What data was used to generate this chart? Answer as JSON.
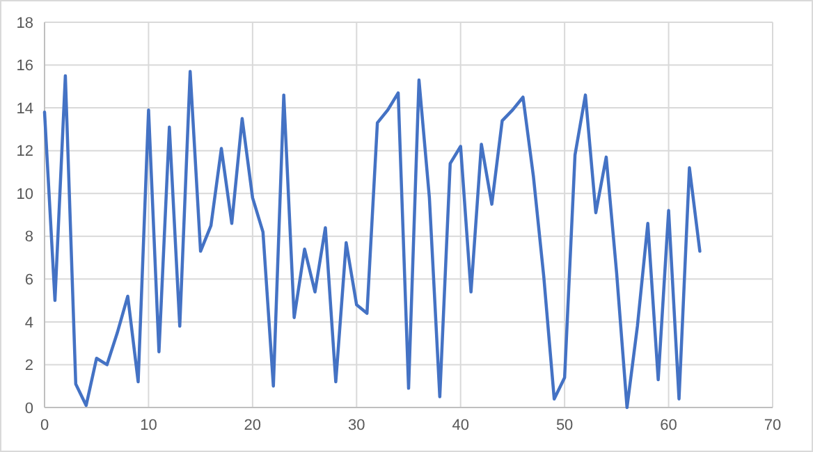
{
  "chart_data": {
    "type": "line",
    "x": [
      0,
      1,
      2,
      3,
      4,
      5,
      6,
      7,
      8,
      9,
      10,
      11,
      12,
      13,
      14,
      15,
      16,
      17,
      18,
      19,
      20,
      21,
      22,
      23,
      24,
      25,
      26,
      27,
      28,
      29,
      30,
      31,
      32,
      33,
      34,
      35,
      36,
      37,
      38,
      39,
      40,
      41,
      42,
      43,
      44,
      45,
      46,
      47,
      48,
      49,
      50,
      51,
      52,
      53,
      54,
      55,
      56,
      57,
      58,
      59,
      60,
      61,
      62,
      63
    ],
    "series": [
      {
        "color": "#4472c4",
        "values": [
          13.8,
          5.0,
          15.5,
          1.1,
          0.1,
          2.3,
          2.0,
          3.5,
          5.2,
          1.2,
          13.9,
          2.6,
          13.1,
          3.8,
          15.7,
          7.3,
          8.5,
          12.1,
          8.6,
          13.5,
          9.8,
          8.2,
          1.0,
          14.6,
          4.2,
          7.4,
          5.4,
          8.4,
          1.2,
          7.7,
          4.8,
          4.4,
          13.3,
          13.9,
          14.7,
          0.9,
          15.3,
          9.8,
          0.5,
          11.4,
          12.2,
          5.4,
          12.3,
          9.5,
          13.4,
          13.9,
          14.5,
          10.8,
          6.1,
          0.4,
          1.4,
          11.8,
          14.6,
          9.1,
          11.7,
          6.3,
          0.0,
          3.8,
          8.6,
          1.3,
          9.2,
          0.4,
          11.2,
          7.3
        ]
      }
    ],
    "xlim": [
      0,
      70
    ],
    "xticks": [
      0,
      10,
      20,
      30,
      40,
      50,
      60,
      70
    ],
    "ylim": [
      0,
      18
    ],
    "yticks": [
      0,
      2,
      4,
      6,
      8,
      10,
      12,
      14,
      16,
      18
    ],
    "grid": true,
    "marker": "none",
    "line_style": "solid"
  }
}
